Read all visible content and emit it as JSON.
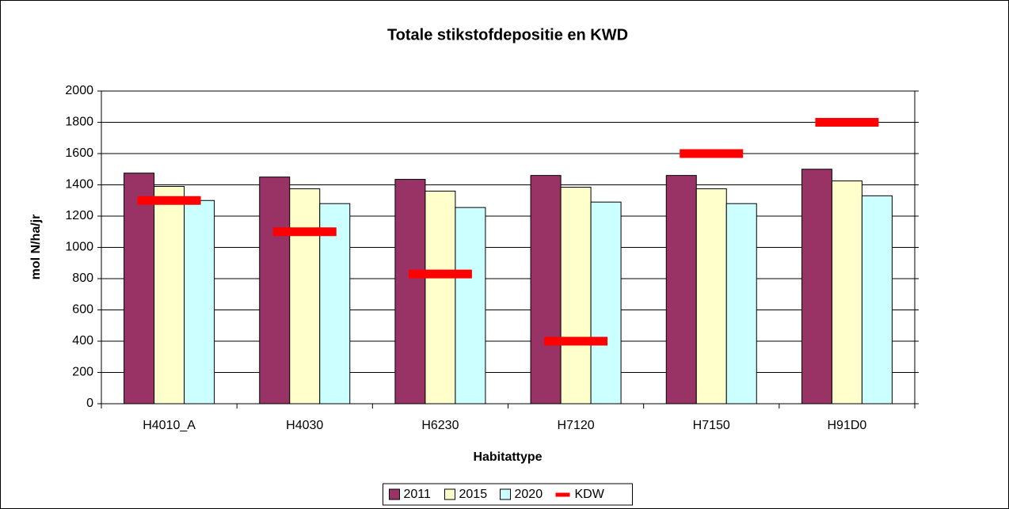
{
  "chart_data": {
    "type": "bar",
    "title": "Totale stikstofdepositie en KWD",
    "x_label": "Habitattype",
    "y_label": "mol N/ha/jr",
    "categories": [
      "H4010_A",
      "H4030",
      "H6230",
      "H7120",
      "H7150",
      "H91D0"
    ],
    "series": [
      {
        "name": "2011",
        "color": "#993366",
        "values": [
          1475,
          1450,
          1435,
          1460,
          1460,
          1500
        ]
      },
      {
        "name": "2015",
        "color": "#ffffcc",
        "values": [
          1390,
          1375,
          1360,
          1385,
          1375,
          1425
        ]
      },
      {
        "name": "2020",
        "color": "#ccffff",
        "values": [
          1300,
          1280,
          1255,
          1290,
          1280,
          1330
        ]
      },
      {
        "name": "KDW",
        "color": "#ff0000",
        "marker": "dash",
        "values": [
          1300,
          1100,
          830,
          400,
          1600,
          1800
        ]
      }
    ],
    "ylim": [
      0,
      2000
    ],
    "yticks": [
      0,
      200,
      400,
      600,
      800,
      1000,
      1200,
      1400,
      1600,
      1800,
      2000
    ],
    "grid": true,
    "legend": "bottom"
  }
}
